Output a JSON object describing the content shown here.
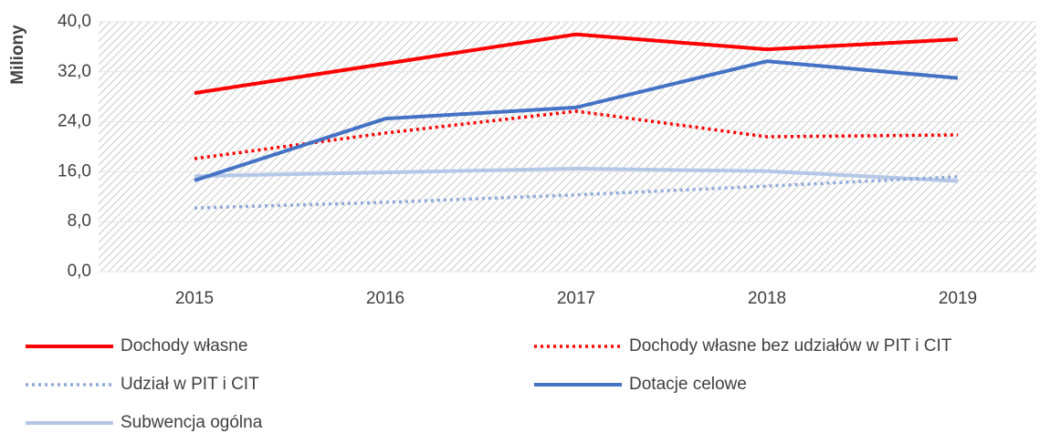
{
  "chart_data": {
    "type": "line",
    "ylabel": "Miliony",
    "categories": [
      "2015",
      "2016",
      "2017",
      "2018",
      "2019"
    ],
    "series": [
      {
        "name": "Dochody własne",
        "color": "#ff0000",
        "style": "solid",
        "values": [
          28.6,
          33.3,
          38.0,
          35.6,
          37.2
        ]
      },
      {
        "name": "Dochody własne bez udziałów w PIT i CIT",
        "color": "#ff0000",
        "style": "dotted",
        "values": [
          18.1,
          22.2,
          25.7,
          21.6,
          21.9
        ]
      },
      {
        "name": "Udział w PIT i CIT",
        "color": "#8eaadb",
        "style": "dotted",
        "values": [
          10.2,
          11.1,
          12.3,
          13.7,
          15.2
        ]
      },
      {
        "name": "Dotacje celowe",
        "color": "#4472c4",
        "style": "solid",
        "values": [
          14.6,
          24.5,
          26.3,
          33.7,
          31.0
        ]
      },
      {
        "name": "Subwencja ogólna",
        "color": "#b4c7e7",
        "style": "solid",
        "values": [
          15.3,
          15.9,
          16.5,
          16.1,
          14.5
        ]
      }
    ],
    "ylim": [
      0,
      40
    ],
    "yticks": [
      {
        "value": 0,
        "label": "0,0"
      },
      {
        "value": 8,
        "label": "8,0"
      },
      {
        "value": 16,
        "label": "16,0"
      },
      {
        "value": 24,
        "label": "24,0"
      },
      {
        "value": 32,
        "label": "32,0"
      },
      {
        "value": 40,
        "label": "40,0"
      }
    ],
    "grid": true
  }
}
